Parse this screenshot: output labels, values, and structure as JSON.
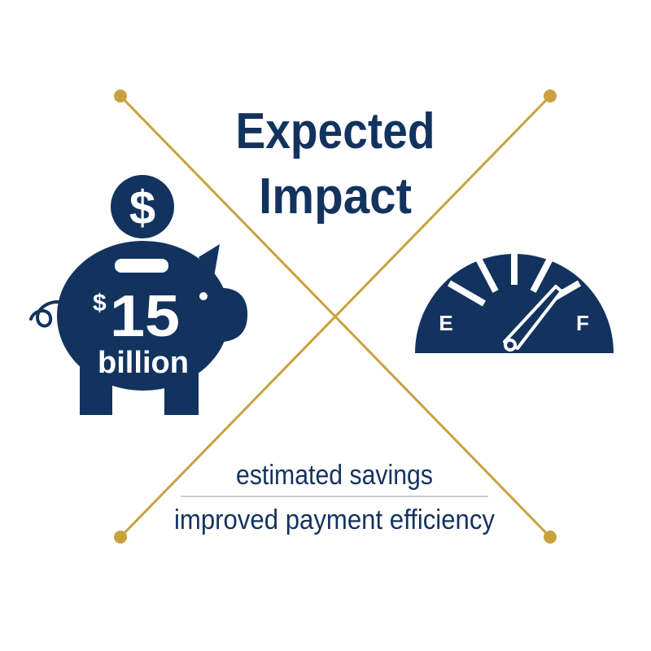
{
  "title": {
    "line1": "Expected",
    "line2": "Impact"
  },
  "savings": {
    "currency": "$",
    "amount": "15",
    "unit": "billion",
    "icon": "piggy-bank-icon",
    "coin_icon": "dollar-coin-icon"
  },
  "efficiency": {
    "icon": "fuel-gauge-icon",
    "empty_label": "E",
    "full_label": "F"
  },
  "captions": {
    "line1": "estimated savings",
    "line2": "improved payment efficiency"
  },
  "colors": {
    "navy": "#13335f",
    "gold": "#c9a23f",
    "divider": "#9a9a9a"
  }
}
